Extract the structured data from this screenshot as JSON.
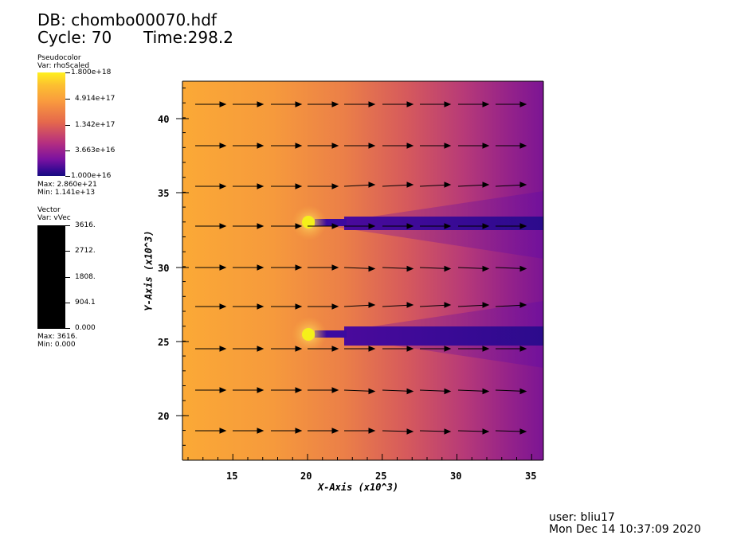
{
  "header": {
    "db": "DB: chombo00070.hdf",
    "cycle": "Cycle: 70",
    "time": "Time:298.2"
  },
  "pseudocolor_legend": {
    "title": "Pseudocolor",
    "var": "Var: rhoScaled",
    "ticks": [
      "1.800e+18",
      "4.914e+17",
      "1.342e+17",
      "3.663e+16",
      "1.000e+16"
    ],
    "max": "Max:  2.860e+21",
    "min": "Min:  1.141e+13",
    "colors": [
      "#fff01e",
      "#fca63a",
      "#e16462",
      "#a2287d",
      "#5c06a5",
      "#1b0c86"
    ]
  },
  "vector_legend": {
    "title": "Vector",
    "var": "Var: vVec",
    "ticks": [
      "3616.",
      "2712.",
      "1808.",
      "904.1",
      "0.000"
    ],
    "max": "Max:  3616.",
    "min": "Min:  0.000"
  },
  "plot": {
    "x_title": "X-Axis (x10^3)",
    "y_title": "Y-Axis (x10^3)",
    "x_ticks": [
      "15",
      "20",
      "25",
      "30",
      "35"
    ],
    "y_ticks": [
      "20",
      "25",
      "30",
      "35",
      "40"
    ]
  },
  "footer": {
    "user": "user: bliu17",
    "date": "Mon Dec 14 10:37:09 2020"
  }
}
